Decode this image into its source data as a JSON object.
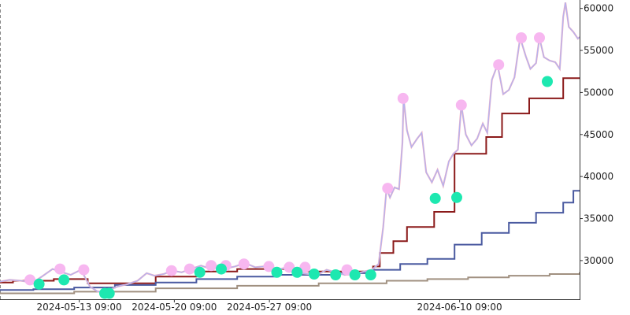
{
  "chart_data": {
    "type": "line",
    "title": "",
    "xlabel": "",
    "ylabel": "",
    "y_axis_position": "right",
    "grid": false,
    "legend": "none",
    "xlim": [
      "2024-05-07T13:00",
      "2024-06-19T05:00"
    ],
    "ylim": [
      25400,
      61000
    ],
    "x_ticks": [
      {
        "x": "2024-05-13T09:00",
        "label": "2024-05-13 09:00"
      },
      {
        "x": "2024-05-20T09:00",
        "label": "2024-05-20 09:00"
      },
      {
        "x": "2024-05-27T09:00",
        "label": "2024-05-27 09:00"
      },
      {
        "x": "2024-06-10T09:00",
        "label": "2024-06-10 09:00"
      }
    ],
    "y_ticks": [
      30000,
      35000,
      40000,
      45000,
      50000,
      55000,
      60000
    ],
    "price": {
      "color": "#b3b3f0",
      "points": [
        [
          "2024-05-07T13:00",
          27500
        ],
        [
          "2024-05-08T06:00",
          27700
        ],
        [
          "2024-05-09T02:00",
          27600
        ],
        [
          "2024-05-09T23:00",
          27400
        ],
        [
          "2024-05-10T15:00",
          28100
        ],
        [
          "2024-05-11T10:00",
          29000
        ],
        [
          "2024-05-12T03:00",
          28600
        ],
        [
          "2024-05-12T18:00",
          28300
        ],
        [
          "2024-05-13T12:00",
          28900
        ],
        [
          "2024-05-14T04:00",
          26900
        ],
        [
          "2024-05-14T18:00",
          26300
        ],
        [
          "2024-05-15T10:00",
          26400
        ],
        [
          "2024-05-16T04:00",
          26900
        ],
        [
          "2024-05-16T22:00",
          27200
        ],
        [
          "2024-05-17T16:00",
          27600
        ],
        [
          "2024-05-18T08:00",
          28500
        ],
        [
          "2024-05-18T22:00",
          28200
        ],
        [
          "2024-05-19T14:00",
          28400
        ],
        [
          "2024-05-20T06:00",
          28800
        ],
        [
          "2024-05-20T22:00",
          28600
        ],
        [
          "2024-05-21T14:00",
          29000
        ],
        [
          "2024-05-22T08:00",
          29400
        ],
        [
          "2024-05-22T22:00",
          29100
        ],
        [
          "2024-05-23T14:00",
          29400
        ],
        [
          "2024-05-24T06:00",
          29100
        ],
        [
          "2024-05-24T20:00",
          29300
        ],
        [
          "2024-05-25T14:00",
          29700
        ],
        [
          "2024-05-26T08:00",
          29200
        ],
        [
          "2024-05-26T22:00",
          29300
        ],
        [
          "2024-05-27T16:00",
          28800
        ],
        [
          "2024-05-28T10:00",
          29100
        ],
        [
          "2024-05-28T22:00",
          28700
        ],
        [
          "2024-05-29T16:00",
          28500
        ],
        [
          "2024-05-30T08:00",
          28400
        ],
        [
          "2024-05-30T22:00",
          28300
        ],
        [
          "2024-05-31T14:00",
          28900
        ],
        [
          "2024-06-01T06:00",
          28600
        ],
        [
          "2024-06-01T22:00",
          28300
        ],
        [
          "2024-06-02T16:00",
          28400
        ],
        [
          "2024-06-03T08:00",
          28700
        ],
        [
          "2024-06-03T22:00",
          28900
        ],
        [
          "2024-06-04T10:00",
          29600
        ],
        [
          "2024-06-04T18:00",
          34000
        ],
        [
          "2024-06-05T00:00",
          38600
        ],
        [
          "2024-06-05T06:00",
          37500
        ],
        [
          "2024-06-05T14:00",
          38700
        ],
        [
          "2024-06-05T22:00",
          38500
        ],
        [
          "2024-06-06T04:00",
          44000
        ],
        [
          "2024-06-06T06:00",
          49300
        ],
        [
          "2024-06-06T12:00",
          45500
        ],
        [
          "2024-06-06T20:00",
          43500
        ],
        [
          "2024-06-07T06:00",
          44500
        ],
        [
          "2024-06-07T14:00",
          45200
        ],
        [
          "2024-06-07T22:00",
          40500
        ],
        [
          "2024-06-08T08:00",
          39300
        ],
        [
          "2024-06-08T18:00",
          40800
        ],
        [
          "2024-06-09T04:00",
          38900
        ],
        [
          "2024-06-09T14:00",
          41800
        ],
        [
          "2024-06-09T22:00",
          42700
        ],
        [
          "2024-06-10T06:00",
          43200
        ],
        [
          "2024-06-10T12:00",
          48500
        ],
        [
          "2024-06-10T20:00",
          45000
        ],
        [
          "2024-06-11T06:00",
          43700
        ],
        [
          "2024-06-11T16:00",
          44500
        ],
        [
          "2024-06-12T02:00",
          46300
        ],
        [
          "2024-06-12T10:00",
          45200
        ],
        [
          "2024-06-12T18:00",
          51500
        ],
        [
          "2024-06-13T04:00",
          53300
        ],
        [
          "2024-06-13T14:00",
          49800
        ],
        [
          "2024-06-14T00:00",
          50300
        ],
        [
          "2024-06-14T10:00",
          51800
        ],
        [
          "2024-06-14T20:00",
          56500
        ],
        [
          "2024-06-15T06:00",
          54300
        ],
        [
          "2024-06-15T14:00",
          52800
        ],
        [
          "2024-06-16T00:00",
          53500
        ],
        [
          "2024-06-16T06:00",
          56500
        ],
        [
          "2024-06-16T14:00",
          54200
        ],
        [
          "2024-06-17T00:00",
          53800
        ],
        [
          "2024-06-17T10:00",
          53600
        ],
        [
          "2024-06-17T18:00",
          52800
        ],
        [
          "2024-06-18T00:00",
          59000
        ],
        [
          "2024-06-18T04:00",
          60700
        ],
        [
          "2024-06-18T10:00",
          57800
        ],
        [
          "2024-06-18T18:00",
          57200
        ],
        [
          "2024-06-19T02:00",
          56400
        ],
        [
          "2024-06-19T05:00",
          56600
        ]
      ]
    },
    "series": [
      {
        "color": "#8b1a1a",
        "points": [
          [
            "2024-05-07T13:00",
            27400
          ],
          [
            "2024-05-08T12:00",
            27600
          ],
          [
            "2024-05-11T12:00",
            27800
          ],
          [
            "2024-05-14T00:00",
            27300
          ],
          [
            "2024-05-19T00:00",
            28100
          ],
          [
            "2024-05-22T00:00",
            28700
          ],
          [
            "2024-05-25T00:00",
            29000
          ],
          [
            "2024-05-30T00:00",
            28700
          ],
          [
            "2024-06-04T00:00",
            29300
          ],
          [
            "2024-06-04T12:00",
            30900
          ],
          [
            "2024-06-05T12:00",
            32300
          ],
          [
            "2024-06-06T12:00",
            34000
          ],
          [
            "2024-06-08T12:00",
            35800
          ],
          [
            "2024-06-10T00:00",
            42700
          ],
          [
            "2024-06-12T08:00",
            44700
          ],
          [
            "2024-06-13T12:00",
            47500
          ],
          [
            "2024-06-15T12:00",
            49300
          ],
          [
            "2024-06-18T00:00",
            51700
          ],
          [
            "2024-06-19T05:00",
            51700
          ]
        ]
      },
      {
        "color": "#4a5aa0",
        "points": [
          [
            "2024-05-07T13:00",
            26500
          ],
          [
            "2024-05-10T00:00",
            26600
          ],
          [
            "2024-05-13T00:00",
            26800
          ],
          [
            "2024-05-16T00:00",
            27100
          ],
          [
            "2024-05-19T00:00",
            27400
          ],
          [
            "2024-05-22T00:00",
            27800
          ],
          [
            "2024-05-25T00:00",
            28100
          ],
          [
            "2024-05-28T00:00",
            28300
          ],
          [
            "2024-06-01T00:00",
            28500
          ],
          [
            "2024-06-04T00:00",
            28900
          ],
          [
            "2024-06-06T00:00",
            29600
          ],
          [
            "2024-06-08T00:00",
            30200
          ],
          [
            "2024-06-10T00:00",
            31900
          ],
          [
            "2024-06-12T00:00",
            33300
          ],
          [
            "2024-06-14T00:00",
            34500
          ],
          [
            "2024-06-16T00:00",
            35700
          ],
          [
            "2024-06-18T00:00",
            36900
          ],
          [
            "2024-06-18T18:00",
            38300
          ],
          [
            "2024-06-19T05:00",
            38300
          ]
        ]
      },
      {
        "color": "#a09080",
        "points": [
          [
            "2024-05-07T13:00",
            26100
          ],
          [
            "2024-05-13T00:00",
            26300
          ],
          [
            "2024-05-19T00:00",
            26700
          ],
          [
            "2024-05-25T00:00",
            27000
          ],
          [
            "2024-05-31T00:00",
            27300
          ],
          [
            "2024-06-05T00:00",
            27600
          ],
          [
            "2024-06-08T00:00",
            27800
          ],
          [
            "2024-06-11T00:00",
            28000
          ],
          [
            "2024-06-14T00:00",
            28200
          ],
          [
            "2024-06-17T00:00",
            28400
          ],
          [
            "2024-06-19T05:00",
            28600
          ]
        ]
      }
    ],
    "markers": [
      {
        "color": "#f7b7f0",
        "points": [
          [
            "2024-05-09T18:00",
            27700
          ],
          [
            "2024-05-11T23:00",
            29000
          ],
          [
            "2024-05-13T17:00",
            28900
          ],
          [
            "2024-05-20T04:00",
            28800
          ],
          [
            "2024-05-21T12:00",
            29000
          ],
          [
            "2024-05-23T02:00",
            29400
          ],
          [
            "2024-05-24T04:00",
            29400
          ],
          [
            "2024-05-25T12:00",
            29600
          ],
          [
            "2024-05-27T08:00",
            29300
          ],
          [
            "2024-05-28T20:00",
            29200
          ],
          [
            "2024-05-30T00:00",
            29200
          ],
          [
            "2024-06-02T02:00",
            28900
          ],
          [
            "2024-06-05T02:00",
            38600
          ],
          [
            "2024-06-06T05:00",
            49300
          ],
          [
            "2024-06-10T12:00",
            48500
          ],
          [
            "2024-06-13T06:00",
            53300
          ],
          [
            "2024-06-14T22:00",
            56500
          ],
          [
            "2024-06-16T06:00",
            56500
          ]
        ]
      },
      {
        "color": "#1de8b0",
        "points": [
          [
            "2024-05-10T10:00",
            27200
          ],
          [
            "2024-05-12T06:00",
            27700
          ],
          [
            "2024-05-15T06:00",
            26100
          ],
          [
            "2024-05-15T14:00",
            26100
          ],
          [
            "2024-05-22T06:00",
            28600
          ],
          [
            "2024-05-23T20:00",
            29000
          ],
          [
            "2024-05-27T22:00",
            28600
          ],
          [
            "2024-05-29T10:00",
            28600
          ],
          [
            "2024-05-30T16:00",
            28400
          ],
          [
            "2024-06-01T06:00",
            28300
          ],
          [
            "2024-06-02T16:00",
            28300
          ],
          [
            "2024-06-03T20:00",
            28300
          ],
          [
            "2024-06-08T14:00",
            37400
          ],
          [
            "2024-06-10T04:00",
            37500
          ],
          [
            "2024-06-16T20:00",
            51300
          ]
        ]
      }
    ]
  }
}
